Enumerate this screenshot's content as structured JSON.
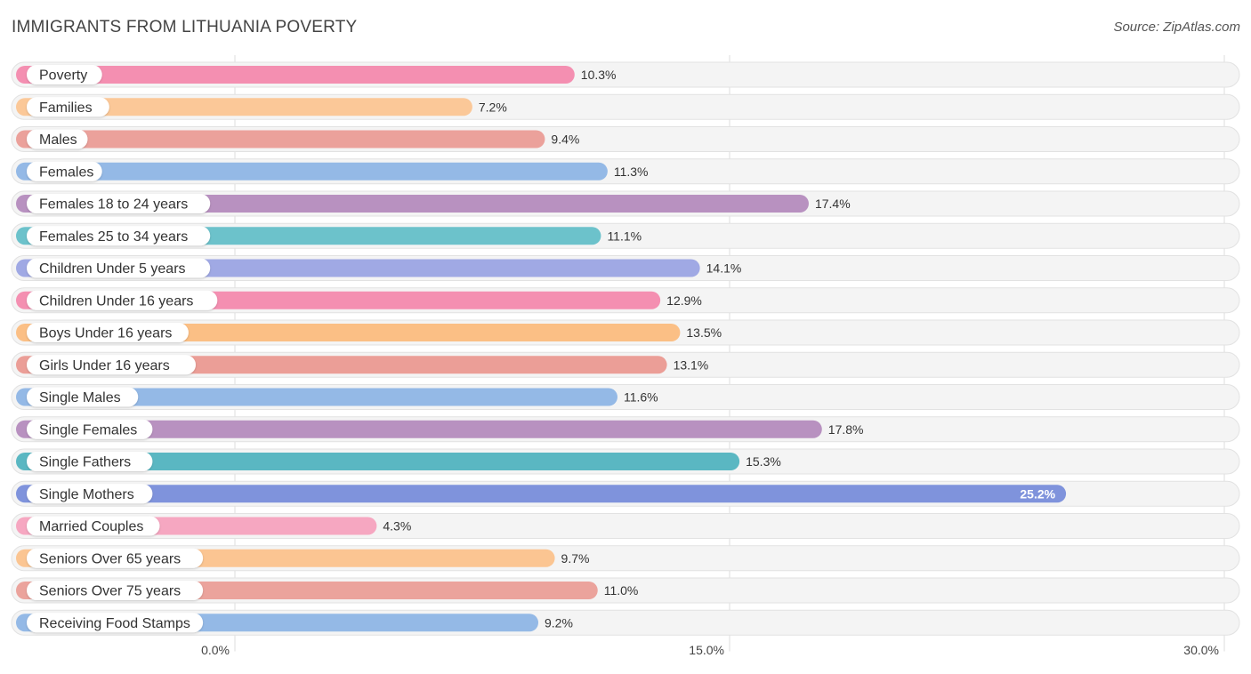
{
  "header": {
    "title": "IMMIGRANTS FROM LITHUANIA POVERTY",
    "source": "Source: ZipAtlas.com"
  },
  "chart_data": {
    "type": "bar",
    "orientation": "horizontal",
    "title": "IMMIGRANTS FROM LITHUANIA POVERTY",
    "xlim": [
      0,
      30
    ],
    "ticks": [
      0,
      15,
      30
    ],
    "tick_labels": [
      "0.0%",
      "15.0%",
      "30.0%"
    ],
    "grid": true,
    "categories": [
      "Poverty",
      "Families",
      "Males",
      "Females",
      "Females 18 to 24 years",
      "Females 25 to 34 years",
      "Children Under 5 years",
      "Children Under 16 years",
      "Boys Under 16 years",
      "Girls Under 16 years",
      "Single Males",
      "Single Females",
      "Single Fathers",
      "Single Mothers",
      "Married Couples",
      "Seniors Over 65 years",
      "Seniors Over 75 years",
      "Receiving Food Stamps"
    ],
    "values": [
      10.3,
      7.2,
      9.4,
      11.3,
      17.4,
      11.1,
      14.1,
      12.9,
      13.5,
      13.1,
      11.6,
      17.8,
      15.3,
      25.2,
      4.3,
      9.7,
      11.0,
      9.2
    ],
    "value_labels": [
      "10.3%",
      "7.2%",
      "9.4%",
      "11.3%",
      "17.4%",
      "11.1%",
      "14.1%",
      "12.9%",
      "13.5%",
      "13.1%",
      "11.6%",
      "17.8%",
      "15.3%",
      "25.2%",
      "4.3%",
      "9.7%",
      "11.0%",
      "9.2%"
    ],
    "colors": [
      "#f48fb1",
      "#fbc898",
      "#eba19b",
      "#94b9e6",
      "#b891c0",
      "#6cc2cb",
      "#a0a9e4",
      "#f48fb1",
      "#fbbf85",
      "#eb9e97",
      "#94b9e6",
      "#b891c0",
      "#5ab7c2",
      "#7f93dc",
      "#f6a7c1",
      "#fbc592",
      "#eba39c",
      "#94b9e6"
    ]
  }
}
